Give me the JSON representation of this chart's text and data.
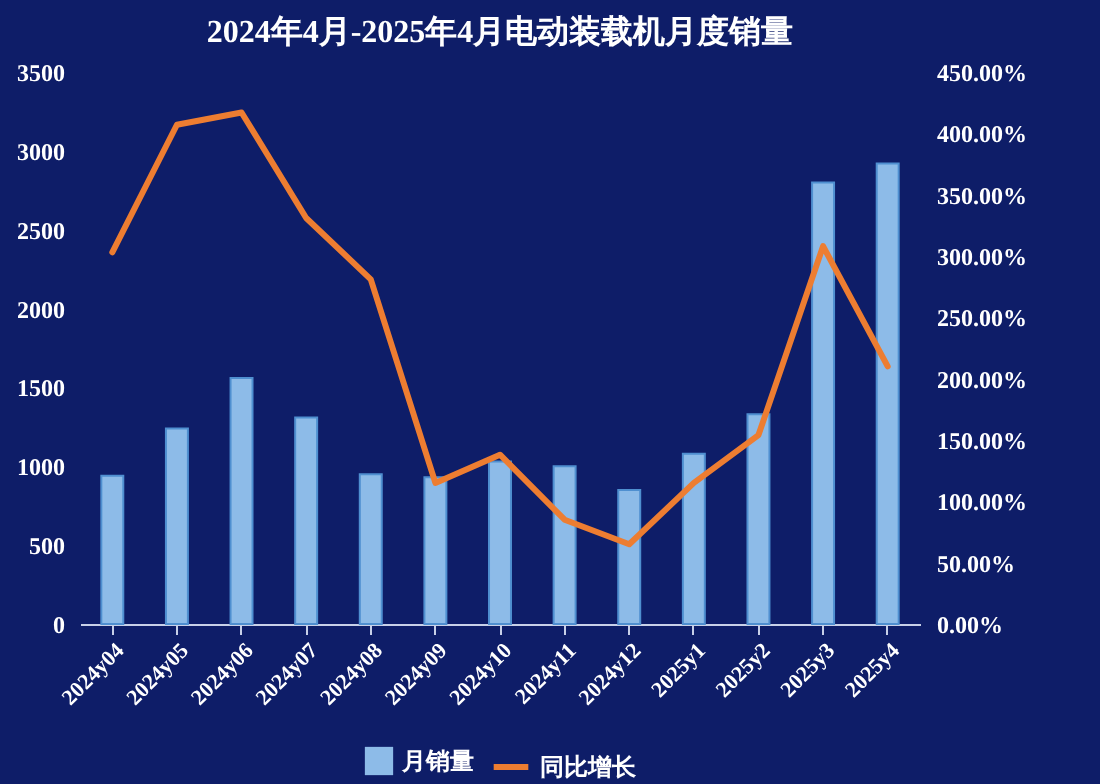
{
  "chart_data": {
    "type": "bar",
    "title": "2024年4月-2025年4月电动装载机月度销量",
    "categories": [
      "2024y04",
      "2024y05",
      "2024y06",
      "2024y07",
      "2024y08",
      "2024y09",
      "2024y10",
      "2024y11",
      "2024y12",
      "2025y1",
      "2025y2",
      "2025y3",
      "2025y4"
    ],
    "series": [
      {
        "name": "月销量",
        "color": "#8dbbe8",
        "values": [
          940,
          1240,
          1560,
          1310,
          950,
          930,
          1030,
          1000,
          850,
          1080,
          1330,
          2800,
          2920
        ]
      },
      {
        "name": "同比增长",
        "type": "line",
        "axis": "y2",
        "color": "#ed7d31",
        "values": [
          303,
          407,
          417,
          331,
          281,
          115,
          138,
          85,
          65,
          115,
          154,
          308,
          210
        ]
      }
    ],
    "ylim": [
      0,
      3500
    ],
    "yticks": [
      0,
      500,
      1000,
      1500,
      2000,
      2500,
      3000,
      3500
    ],
    "y2lim": [
      0,
      450
    ],
    "y2ticks": [
      {
        "value": 0,
        "label": "0.00%"
      },
      {
        "value": 50,
        "label": "50.00%"
      },
      {
        "value": 100,
        "label": "100.00%"
      },
      {
        "value": 150,
        "label": "150.00%"
      },
      {
        "value": 200,
        "label": "200.00%"
      },
      {
        "value": 250,
        "label": "250.00%"
      },
      {
        "value": 300,
        "label": "300.00%"
      },
      {
        "value": 350,
        "label": "350.00%"
      },
      {
        "value": 400,
        "label": "400.00%"
      },
      {
        "value": 450,
        "label": "450.00%"
      }
    ],
    "legend": "bottom",
    "grid": false
  }
}
